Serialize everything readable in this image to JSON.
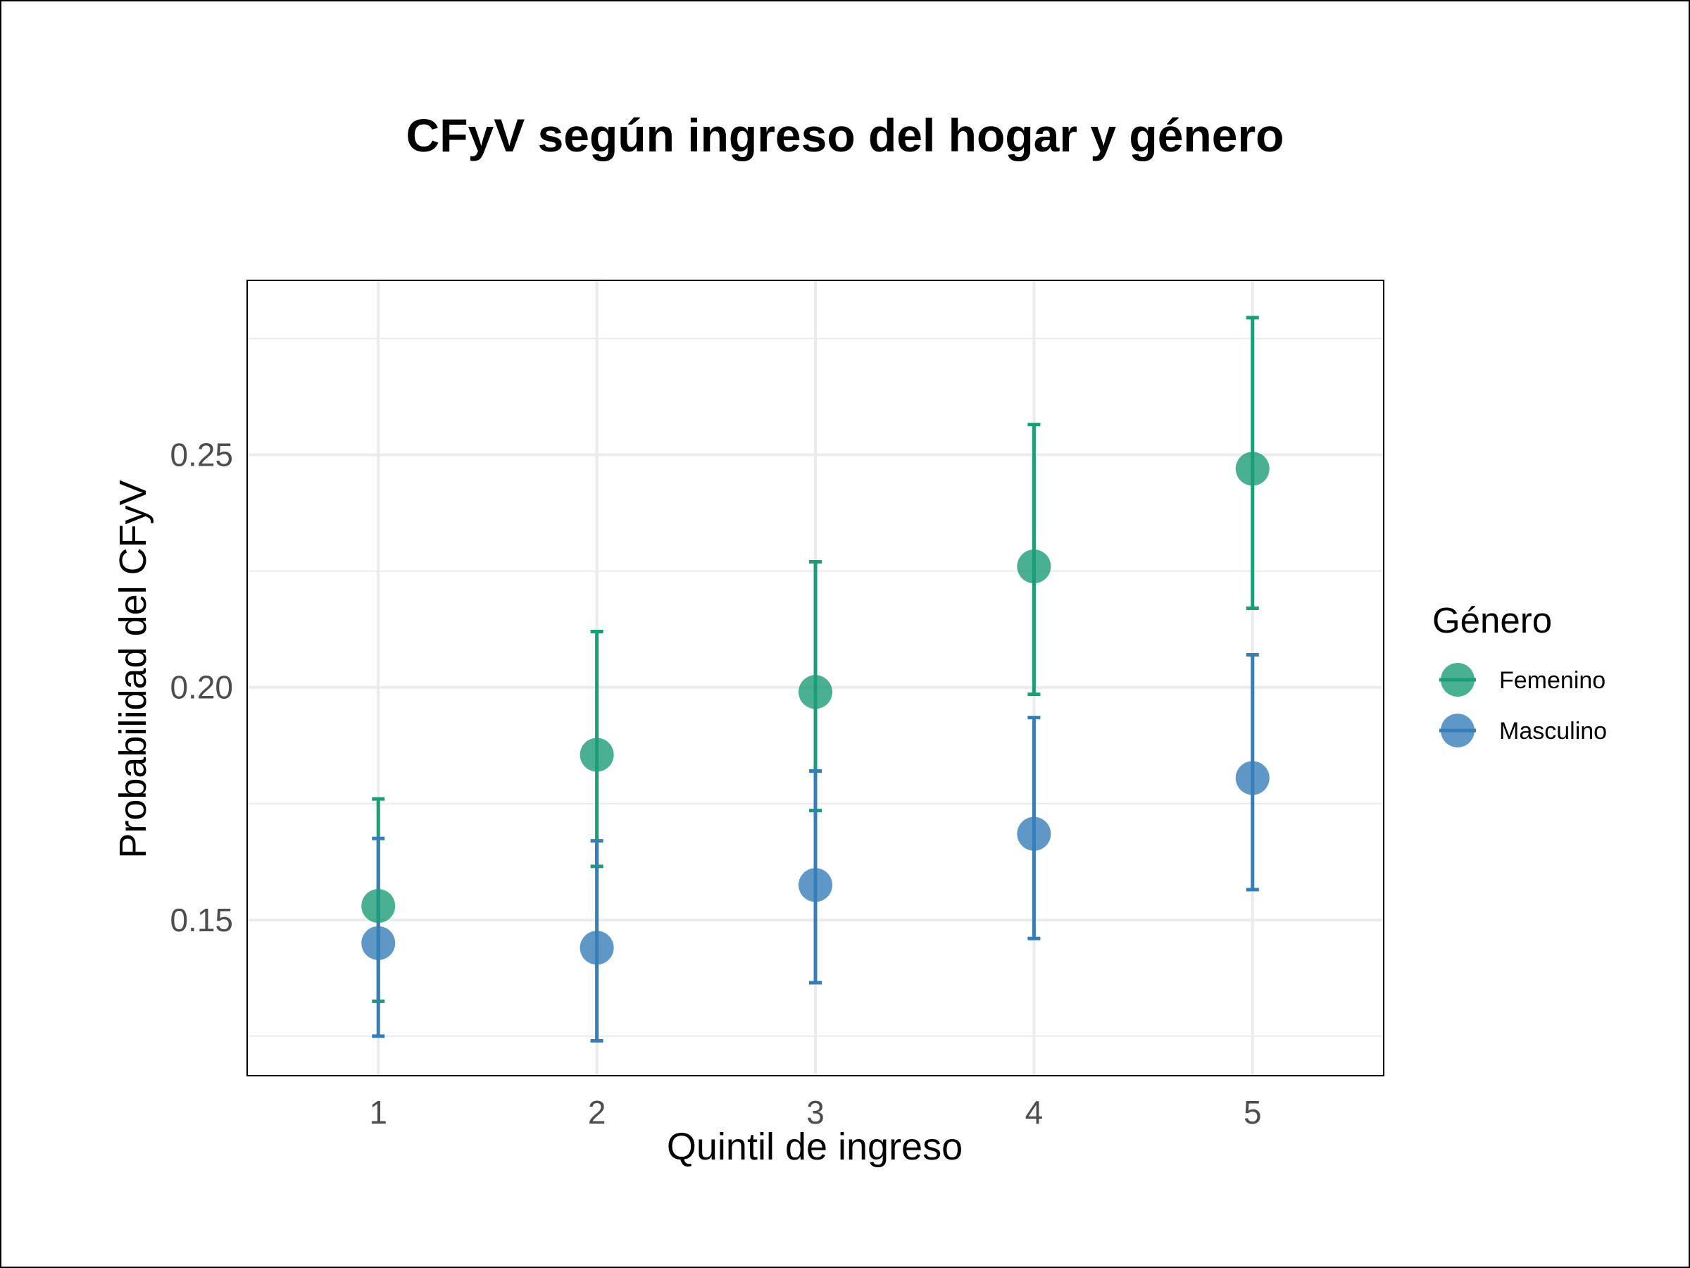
{
  "chart_data": {
    "type": "scatter",
    "title": "CFyV según ingreso del hogar y género",
    "xlabel": "Quintil de ingreso",
    "ylabel": "Probabilidad del CFyV",
    "x": [
      1,
      2,
      3,
      4,
      5
    ],
    "x_tick_labels": [
      "1",
      "2",
      "3",
      "4",
      "5"
    ],
    "xlim": [
      0.4,
      5.6
    ],
    "ylim": [
      0.1165,
      0.2875
    ],
    "y_ticks": [
      0.15,
      0.2,
      0.25
    ],
    "y_tick_labels": [
      "0.15",
      "0.20",
      "0.25"
    ],
    "y_minor_ticks": [
      0.125,
      0.175,
      0.225,
      0.275
    ],
    "grid": true,
    "legend": {
      "title": "Género",
      "position": "right"
    },
    "series": [
      {
        "name": "Femenino",
        "color": "#1b9e77",
        "values": [
          0.153,
          0.1855,
          0.199,
          0.226,
          0.247
        ],
        "lower": [
          0.1325,
          0.1615,
          0.1735,
          0.1985,
          0.217
        ],
        "upper": [
          0.176,
          0.212,
          0.227,
          0.2565,
          0.2795
        ]
      },
      {
        "name": "Masculino",
        "color": "#377eb8",
        "values": [
          0.145,
          0.144,
          0.1575,
          0.1685,
          0.1805
        ],
        "lower": [
          0.125,
          0.124,
          0.1365,
          0.146,
          0.1565
        ],
        "upper": [
          0.1675,
          0.167,
          0.182,
          0.1935,
          0.207
        ]
      }
    ]
  }
}
